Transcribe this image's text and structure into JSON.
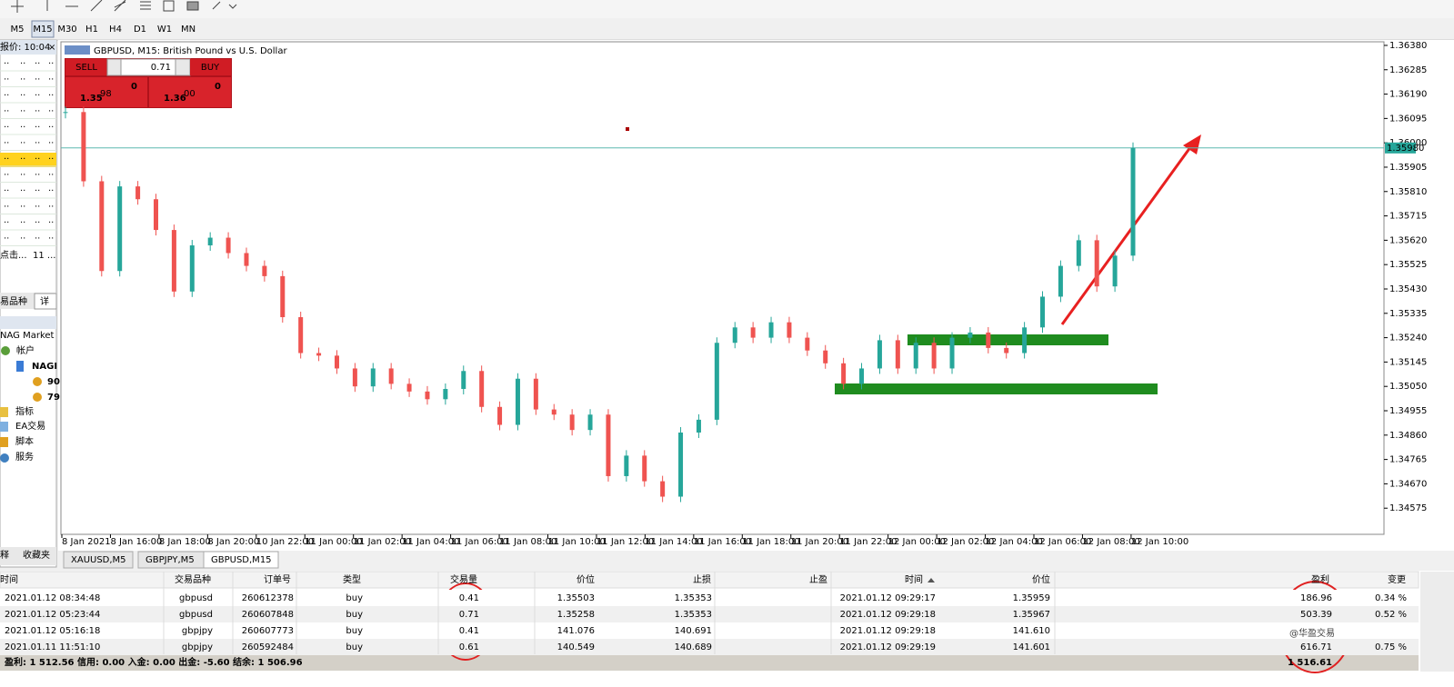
{
  "toolbar": {
    "timeframes": [
      "M5",
      "M15",
      "M30",
      "H1",
      "H4",
      "D1",
      "W1",
      "MN"
    ],
    "active_index": 1
  },
  "market_watch": {
    "header": "报价: 10:04",
    "footer": [
      "点击...",
      "11 ..."
    ],
    "tabs": [
      "易品种",
      "详"
    ]
  },
  "navigator": {
    "title": "NAG Market",
    "items": [
      "帐户",
      "NAGI",
      "90",
      "79",
      "指标",
      "EA交易",
      "脚本",
      "服务"
    ],
    "tabs": [
      "释",
      "收藏夹"
    ]
  },
  "order_panel": {
    "sell": "SELL",
    "buy": "BUY",
    "volume": "0.71",
    "sell_price": {
      "big_figure": "1.35",
      "pips": "98",
      "point": "0"
    },
    "buy_price": {
      "big_figure": "1.36",
      "pips": "00",
      "point": "0"
    }
  },
  "chart_tabs": [
    "XAUUSD,M5",
    "GBPJPY,M5",
    "GBPUSD,M15"
  ],
  "chart_data": {
    "type": "candlestick",
    "title": "GBPUSD, M15: British Pound vs U.S. Dollar",
    "up_color": "#26a69a",
    "down_color": "#ef5350",
    "ylim": [
      1.34473,
      1.36394
    ],
    "yticks": [
      {
        "value": 1.3638,
        "label": "1.36380"
      },
      {
        "value": 1.36285,
        "label": "1.36285"
      },
      {
        "value": 1.3619,
        "label": "1.36190"
      },
      {
        "value": 1.36095,
        "label": "1.36095"
      },
      {
        "value": 1.36,
        "label": "1.36000"
      },
      {
        "value": 1.35905,
        "label": "1.35905"
      },
      {
        "value": 1.3581,
        "label": "1.35810"
      },
      {
        "value": 1.35715,
        "label": "1.35715"
      },
      {
        "value": 1.3562,
        "label": "1.35620"
      },
      {
        "value": 1.35525,
        "label": "1.35525"
      },
      {
        "value": 1.3543,
        "label": "1.35430"
      },
      {
        "value": 1.35335,
        "label": "1.35335"
      },
      {
        "value": 1.3524,
        "label": "1.35240"
      },
      {
        "value": 1.35145,
        "label": "1.35145"
      },
      {
        "value": 1.3505,
        "label": "1.35050"
      },
      {
        "value": 1.34955,
        "label": "1.34955"
      },
      {
        "value": 1.3486,
        "label": "1.34860"
      },
      {
        "value": 1.34765,
        "label": "1.34765"
      },
      {
        "value": 1.3467,
        "label": "1.34670"
      },
      {
        "value": 1.34575,
        "label": "1.34575"
      }
    ],
    "current_price": {
      "value": 1.3598,
      "label": "1.35980"
    },
    "xticks": [
      "8 Jan 2021",
      "8 Jan 16:00",
      "8 Jan 18:00",
      "8 Jan 20:00",
      "10 Jan 22:00",
      "11 Jan 00:00",
      "11 Jan 02:00",
      "11 Jan 04:00",
      "11 Jan 06:00",
      "11 Jan 08:00",
      "11 Jan 10:00",
      "11 Jan 12:00",
      "11 Jan 14:00",
      "11 Jan 16:00",
      "11 Jan 18:00",
      "11 Jan 20:00",
      "11 Jan 22:00",
      "12 Jan 00:00",
      "12 Jan 02:00",
      "12 Jan 04:00",
      "12 Jan 06:00",
      "12 Jan 08:00",
      "12 Jan 10:00"
    ],
    "values": [
      1.3612,
      1.3585,
      1.355,
      1.3583,
      1.3578,
      1.3566,
      1.3542,
      1.356,
      1.3563,
      1.3557,
      1.3552,
      1.3548,
      1.3532,
      1.3518,
      1.3517,
      1.3512,
      1.3505,
      1.3512,
      1.3506,
      1.3503,
      1.35,
      1.3504,
      1.3511,
      1.3497,
      1.349,
      1.3508,
      1.3496,
      1.3494,
      1.3488,
      1.3494,
      1.347,
      1.3478,
      1.3468,
      1.3462,
      1.3487,
      1.3492,
      1.3522,
      1.3528,
      1.3524,
      1.353,
      1.3524,
      1.3519,
      1.3514,
      1.3506,
      1.3512,
      1.3523,
      1.3512,
      1.3522,
      1.3512,
      1.3524,
      1.3526,
      1.352,
      1.3518,
      1.3528,
      1.354,
      1.3552,
      1.3562,
      1.3544,
      1.3556,
      1.3598
    ]
  },
  "trades": {
    "headers": {
      "open_time": "时间",
      "symbol": "交易品种",
      "ticket": "订单号",
      "type": "类型",
      "volume": "交易量",
      "open_price": "价位",
      "sl": "止损",
      "tp": "止盈",
      "time": "时间",
      "price": "价位",
      "profit": "盈利",
      "change": "变更"
    },
    "rows": [
      {
        "open_time": "2021.01.12 08:34:48",
        "symbol": "gbpusd",
        "ticket": "260612378",
        "type": "buy",
        "volume": "0.41",
        "open_price": "1.35503",
        "sl": "1.35353",
        "time": "2021.01.12 09:29:17",
        "price": "1.35959",
        "profit": "186.96",
        "change": "0.34 %"
      },
      {
        "open_time": "2021.01.12 05:23:44",
        "symbol": "gbpusd",
        "ticket": "260607848",
        "type": "buy",
        "volume": "0.71",
        "open_price": "1.35258",
        "sl": "1.35353",
        "time": "2021.01.12 09:29:18",
        "price": "1.35967",
        "profit": "503.39",
        "change": "0.52 %"
      },
      {
        "open_time": "2021.01.12 05:16:18",
        "symbol": "gbpjpy",
        "ticket": "260607773",
        "type": "buy",
        "volume": "0.41",
        "open_price": "141.076",
        "sl": "140.691",
        "time": "2021.01.12 09:29:18",
        "price": "141.610"
      },
      {
        "open_time": "2021.01.11 11:51:10",
        "symbol": "gbpjpy",
        "ticket": "260592484",
        "type": "buy",
        "volume": "0.61",
        "open_price": "140.549",
        "sl": "140.689",
        "time": "2021.01.12 09:29:19",
        "price": "141.601",
        "profit": "616.71",
        "change": "0.75 %"
      }
    ],
    "summary": "盈利: 1 512.56  信用: 0.00  入金: 0.00  出金: -5.60  结余: 1 506.96",
    "total_profit": "1 516.61"
  },
  "watermark": "@华盈交易"
}
